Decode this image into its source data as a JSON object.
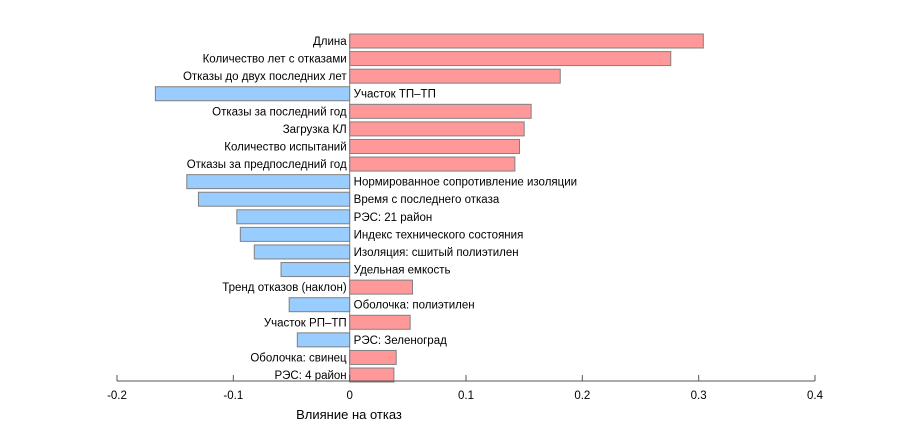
{
  "chart_data": {
    "type": "bar",
    "orientation": "horizontal",
    "title": "",
    "xlabel": "Влияние на отказ",
    "ylabel": "",
    "xlim": [
      -0.2,
      0.4
    ],
    "xticks": [
      "-0.2",
      "-0.1",
      "0",
      "0.1",
      "0.2",
      "0.3",
      "0.4"
    ],
    "xtick_values": [
      -0.2,
      -0.1,
      0,
      0.1,
      0.2,
      0.3,
      0.4
    ],
    "grid": false,
    "colors": {
      "positive": "#ff9999",
      "negative": "#99ccff",
      "edge": "#808080"
    },
    "categories": [
      "Длина",
      "Количество лет с отказами",
      "Отказы до двух последних лет",
      "Участок ТП–ТП",
      "Отказы за последний год",
      "Загрузка КЛ",
      "Количество испытаний",
      "Отказы за предпоследний год",
      "Нормированное сопротивление изоляции",
      "Время с последнего отказа",
      "РЭС: 21 район",
      "Индекс технического состояния",
      "Изоляция: сшитый полиэтилен",
      "Удельная емкость",
      "Тренд отказов (наклон)",
      "Оболочка: полиэтилен",
      "Участок РП–ТП",
      "РЭС: Зеленоград",
      "Оболочка: свинец",
      "РЭС: 4 район"
    ],
    "values": [
      0.304,
      0.276,
      0.181,
      -0.167,
      0.156,
      0.15,
      0.146,
      0.142,
      -0.14,
      -0.13,
      -0.097,
      -0.094,
      -0.082,
      -0.059,
      0.054,
      -0.052,
      0.052,
      -0.045,
      0.04,
      0.038
    ]
  }
}
